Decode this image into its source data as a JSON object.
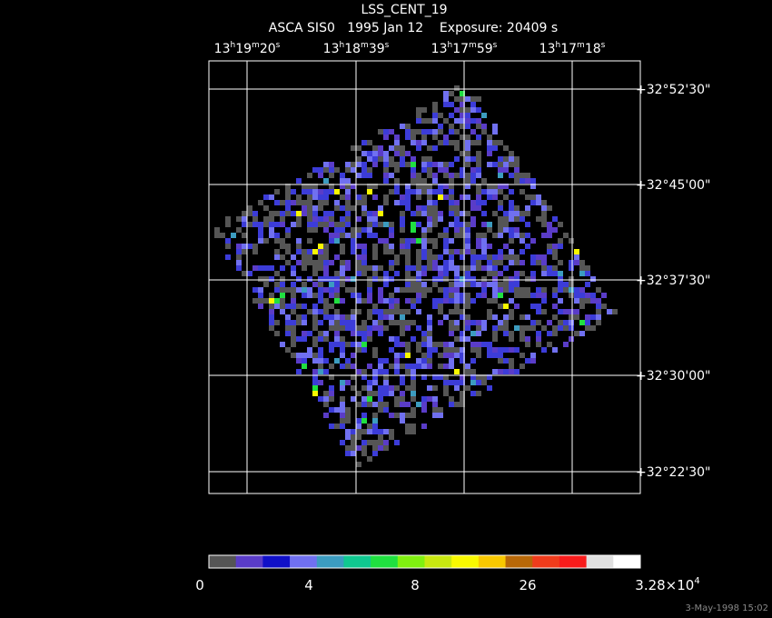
{
  "title": "LSS_CENT_19",
  "subtitle": "ASCA SIS0   1995 Jan 12    Exposure: 20409 s",
  "ra_labels": [
    [
      "13",
      "h",
      "19",
      "m",
      "20",
      "s"
    ],
    [
      "13",
      "h",
      "18",
      "m",
      "39",
      "s"
    ],
    [
      "13",
      "h",
      "17",
      "m",
      "59",
      "s"
    ],
    [
      "13",
      "h",
      "17",
      "m",
      "18",
      "s"
    ]
  ],
  "dec_labels": [
    "+32°52'30\"",
    "+32°45'00\"",
    "+32°37'30\"",
    "+32°30'00\"",
    "+32°22'30\""
  ],
  "colorbar": {
    "colors": [
      "#555555",
      "#5a3cc8",
      "#1010c8",
      "#7070f0",
      "#3c9cc0",
      "#10c890",
      "#20e040",
      "#80f010",
      "#c8e810",
      "#f8f800",
      "#f8c800",
      "#b86808",
      "#f03c1c",
      "#f81c1c",
      "#e0e0e0",
      "#ffffff"
    ],
    "labels": [
      [
        "0"
      ],
      [
        "4"
      ],
      [
        "8"
      ],
      [
        "26"
      ],
      [
        "3.28×10",
        "4"
      ]
    ]
  },
  "timestamp": "3-May-1998 15:02"
}
